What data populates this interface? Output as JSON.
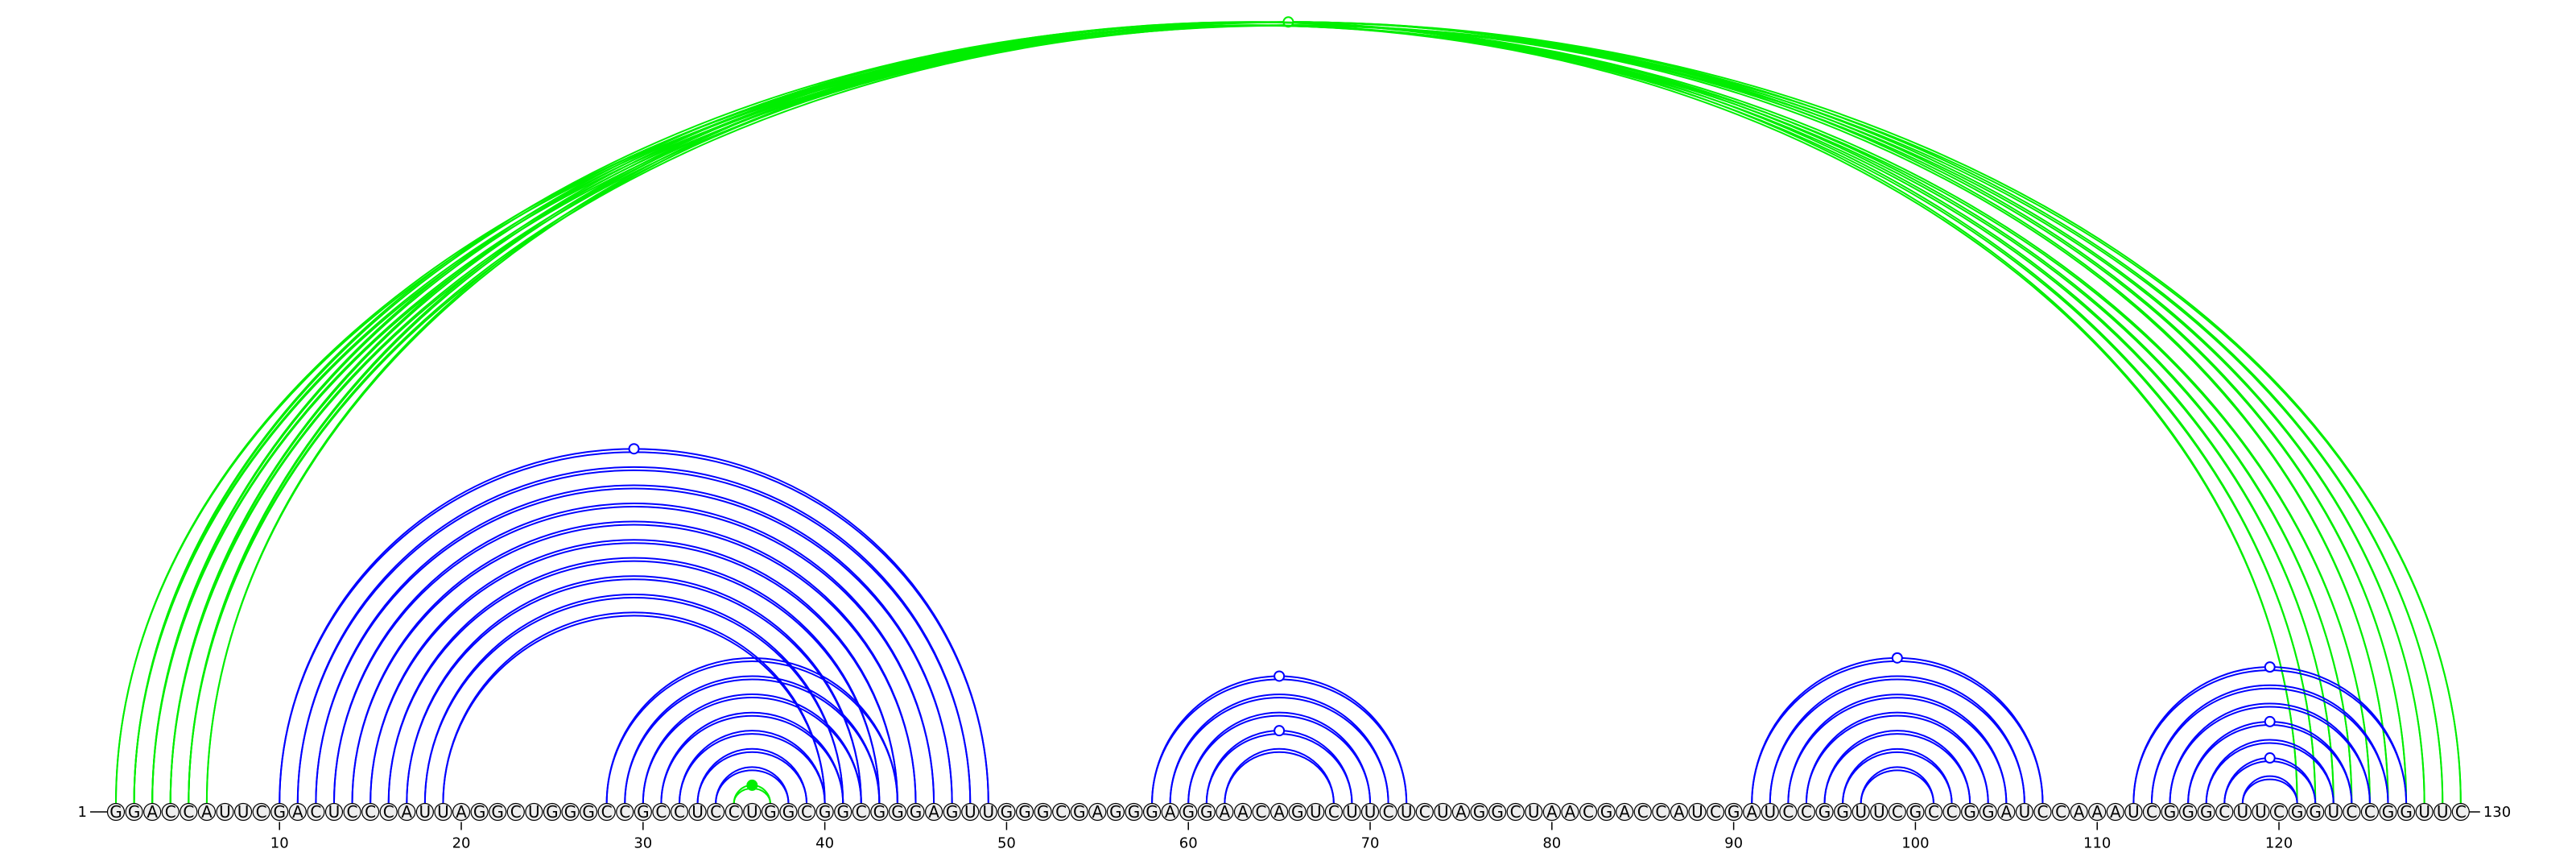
{
  "sequence": "GGACCAUUCGACUCCCAUUAGGCUGGGCCGCCUCCUGGCGGCGGGAGUUGGGCGAGGGAGGAACAGUCUUCUCUAGGCUAACGACCAUCGAUCCGGUUCGCCGGAUCCAAAUCGGGCUUCGGUCCGGUUC",
  "start_label": "1",
  "end_label": "130",
  "tick_labels": [
    "10",
    "20",
    "30",
    "40",
    "50",
    "60",
    "70",
    "80",
    "90",
    "100",
    "110",
    "120"
  ],
  "colors": {
    "nested_arc": "#0000ff",
    "pseudoknot_arc": "#00ee00",
    "base_fill": "#eeeeee",
    "base_stroke": "#000000",
    "background": "#ffffff"
  },
  "structure": {
    "helices": [
      {
        "name": "helix-1",
        "color": "pseudoknot",
        "pairs": [
          [
            1,
            130
          ],
          [
            2,
            129
          ],
          [
            3,
            128
          ],
          [
            4,
            127
          ],
          [
            5,
            126
          ]
        ],
        "marker": "open"
      },
      {
        "name": "helix-2",
        "color": "pseudoknot",
        "pairs": [
          [
            2,
            125
          ],
          [
            3,
            124
          ],
          [
            4,
            123
          ],
          [
            5,
            122
          ],
          [
            6,
            121
          ]
        ],
        "marker": "none"
      },
      {
        "name": "helix-3",
        "color": "nested",
        "pairs": [
          [
            10,
            49
          ],
          [
            11,
            48
          ],
          [
            12,
            47
          ],
          [
            13,
            46
          ],
          [
            14,
            45
          ],
          [
            15,
            44
          ],
          [
            16,
            43
          ],
          [
            17,
            42
          ],
          [
            18,
            41
          ],
          [
            19,
            40
          ]
        ],
        "marker": "open"
      },
      {
        "name": "helix-4",
        "color": "nested",
        "pairs": [
          [
            28,
            44
          ],
          [
            29,
            43
          ],
          [
            30,
            42
          ],
          [
            31,
            41
          ],
          [
            32,
            40
          ],
          [
            33,
            39
          ],
          [
            34,
            38
          ]
        ],
        "marker": "none"
      },
      {
        "name": "helix-5",
        "color": "pseudoknot",
        "pairs": [
          [
            35,
            37
          ]
        ],
        "marker": "filled"
      },
      {
        "name": "helix-6",
        "color": "nested",
        "pairs": [
          [
            58,
            72
          ],
          [
            59,
            71
          ],
          [
            60,
            70
          ]
        ],
        "marker": "open"
      },
      {
        "name": "helix-7",
        "color": "nested",
        "pairs": [
          [
            61,
            69
          ],
          [
            62,
            68
          ]
        ],
        "marker": "open"
      },
      {
        "name": "helix-8",
        "color": "nested",
        "pairs": [
          [
            91,
            107
          ],
          [
            92,
            106
          ],
          [
            93,
            105
          ],
          [
            94,
            104
          ],
          [
            95,
            103
          ],
          [
            96,
            102
          ],
          [
            97,
            101
          ]
        ],
        "marker": "open"
      },
      {
        "name": "helix-9",
        "color": "nested",
        "pairs": [
          [
            112,
            127
          ],
          [
            113,
            126
          ],
          [
            114,
            125
          ]
        ],
        "marker": "open"
      },
      {
        "name": "helix-10",
        "color": "nested",
        "pairs": [
          [
            115,
            124
          ],
          [
            116,
            123
          ]
        ],
        "marker": "open"
      },
      {
        "name": "helix-11",
        "color": "nested",
        "pairs": [
          [
            117,
            122
          ],
          [
            118,
            121
          ]
        ],
        "marker": "open"
      }
    ]
  }
}
